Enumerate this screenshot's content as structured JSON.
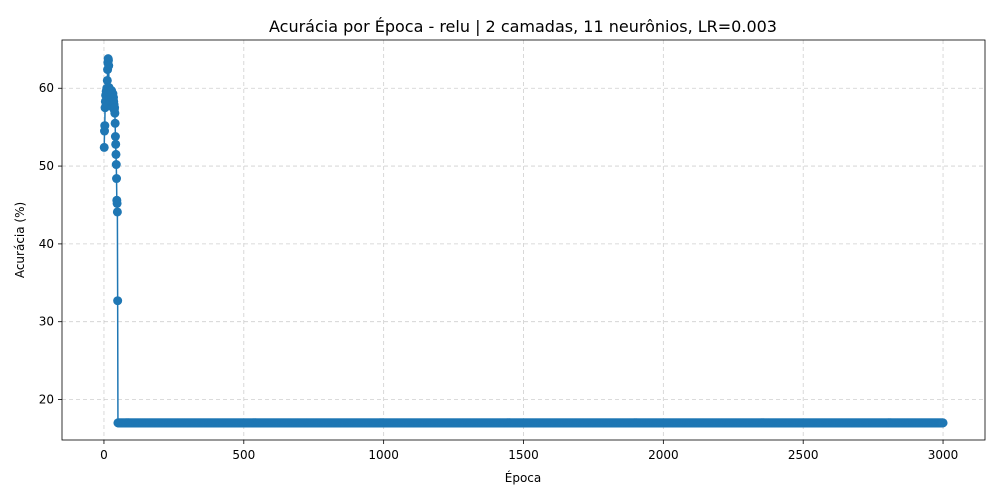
{
  "chart_data": {
    "type": "line",
    "title": "Acurácia por Época - relu | 2 camadas, 11 neurônios, LR=0.003",
    "xlabel": "Época",
    "ylabel": "Acurácia (%)",
    "xlim": [
      -150,
      3150
    ],
    "ylim": [
      14.8,
      66.2
    ],
    "xticks": [
      0,
      500,
      1000,
      1500,
      2000,
      2500,
      3000
    ],
    "yticks": [
      20,
      30,
      40,
      50,
      60
    ],
    "grid": true,
    "marker": "circle",
    "color": "#1f77b4",
    "series": [
      {
        "early_points": [
          [
            1,
            52.4
          ],
          [
            2,
            54.5
          ],
          [
            3,
            55.2
          ],
          [
            4,
            57.5
          ],
          [
            5,
            58.3
          ],
          [
            6,
            59.1
          ],
          [
            7,
            57.8
          ],
          [
            8,
            59.6
          ],
          [
            9,
            58.0
          ],
          [
            10,
            60.0
          ],
          [
            11,
            59.2
          ],
          [
            12,
            61.0
          ],
          [
            13,
            62.4
          ],
          [
            14,
            63.3
          ],
          [
            15,
            63.8
          ],
          [
            16,
            63.6
          ],
          [
            17,
            62.9
          ],
          [
            18,
            60.1
          ],
          [
            19,
            59.4
          ],
          [
            20,
            58.4
          ],
          [
            21,
            59.0
          ],
          [
            22,
            58.7
          ],
          [
            23,
            59.8
          ],
          [
            24,
            59.5
          ],
          [
            25,
            59.0
          ],
          [
            26,
            58.2
          ],
          [
            27,
            59.7
          ],
          [
            28,
            58.6
          ],
          [
            29,
            58.9
          ],
          [
            30,
            57.6
          ],
          [
            31,
            58.1
          ],
          [
            32,
            59.3
          ],
          [
            33,
            58.5
          ],
          [
            34,
            58.8
          ],
          [
            35,
            58.3
          ],
          [
            36,
            57.9
          ],
          [
            37,
            57.2
          ],
          [
            38,
            57.5
          ],
          [
            39,
            56.8
          ],
          [
            40,
            55.5
          ],
          [
            41,
            53.8
          ],
          [
            42,
            52.8
          ],
          [
            43,
            51.5
          ],
          [
            44,
            50.2
          ],
          [
            45,
            48.4
          ],
          [
            46,
            45.6
          ],
          [
            47,
            45.2
          ],
          [
            48,
            44.1
          ],
          [
            49,
            32.7
          ],
          [
            50,
            17.0
          ]
        ],
        "plateau": {
          "from": 51,
          "to": 3000,
          "value": 17.0
        }
      }
    ]
  }
}
